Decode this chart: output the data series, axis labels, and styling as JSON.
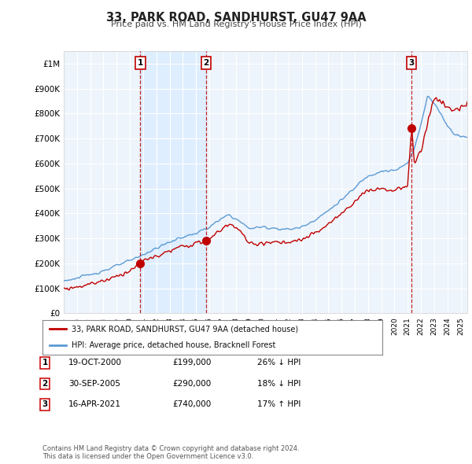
{
  "title": "33, PARK ROAD, SANDHURST, GU47 9AA",
  "subtitle": "Price paid vs. HM Land Registry's House Price Index (HPI)",
  "ylim": [
    0,
    1050000
  ],
  "yticks": [
    0,
    100000,
    200000,
    300000,
    400000,
    500000,
    600000,
    700000,
    800000,
    900000,
    1000000
  ],
  "ytick_labels": [
    "£0",
    "£100K",
    "£200K",
    "£300K",
    "£400K",
    "£500K",
    "£600K",
    "£700K",
    "£800K",
    "£900K",
    "£1M"
  ],
  "sale_dates": [
    2000.79,
    2005.75,
    2021.29
  ],
  "sale_prices": [
    199000,
    290000,
    740000
  ],
  "sale_labels": [
    "1",
    "2",
    "3"
  ],
  "hpi_color": "#5b9bd5",
  "price_color": "#c00000",
  "vline_color": "#c00000",
  "shade_color": "#ddeeff",
  "background_color": "#ffffff",
  "plot_bg_color": "#eef4fb",
  "grid_color": "#ffffff",
  "legend_label_red": "33, PARK ROAD, SANDHURST, GU47 9AA (detached house)",
  "legend_label_blue": "HPI: Average price, detached house, Bracknell Forest",
  "table_entries": [
    {
      "num": "1",
      "date": "19-OCT-2000",
      "price": "£199,000",
      "hpi": "26% ↓ HPI"
    },
    {
      "num": "2",
      "date": "30-SEP-2005",
      "price": "£290,000",
      "hpi": "18% ↓ HPI"
    },
    {
      "num": "3",
      "date": "16-APR-2021",
      "price": "£740,000",
      "hpi": "17% ↑ HPI"
    }
  ],
  "footnote": "Contains HM Land Registry data © Crown copyright and database right 2024.\nThis data is licensed under the Open Government Licence v3.0.",
  "xmin": 1995.0,
  "xmax": 2025.5
}
